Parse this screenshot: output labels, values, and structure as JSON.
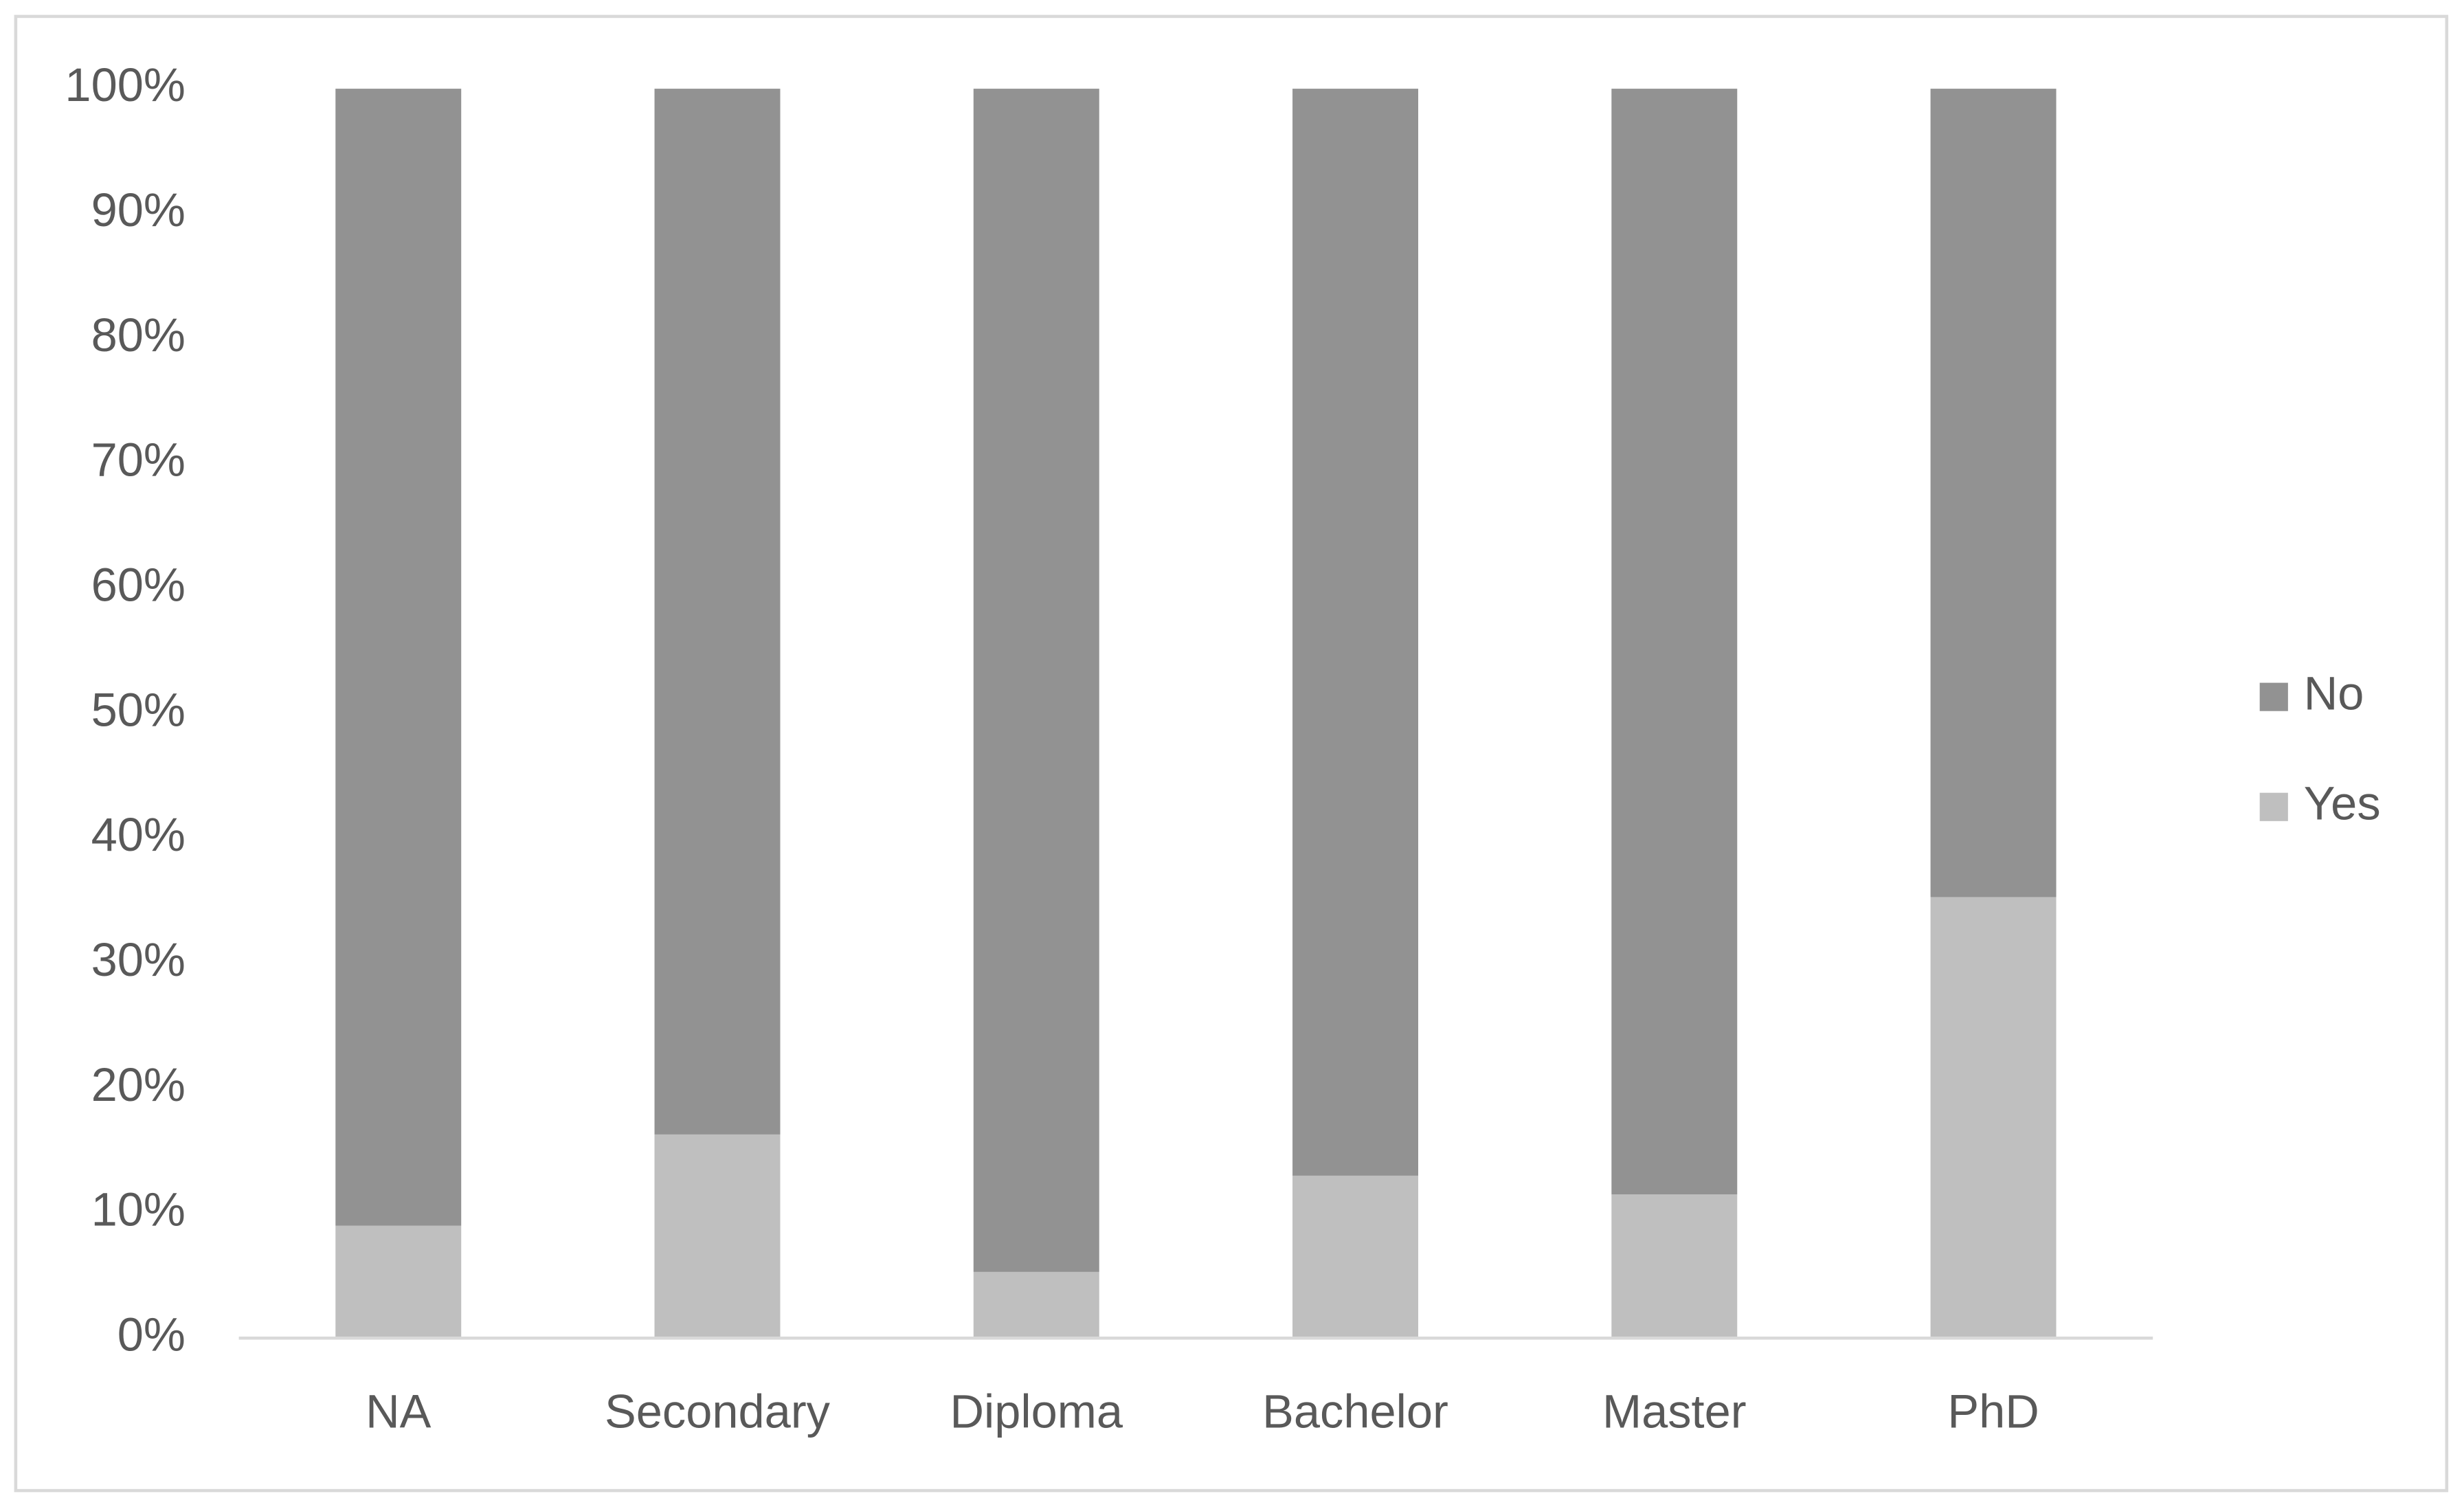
{
  "chart_data": {
    "type": "stacked-bar",
    "categories": [
      "NA",
      "Secondary",
      "Diploma",
      "Bachelor",
      "Master",
      "PhD"
    ],
    "series": [
      {
        "name": "Yes",
        "color": "#bfbfbf",
        "values": [
          9,
          16.3,
          5.3,
          13,
          11.5,
          35.3
        ]
      },
      {
        "name": "No",
        "color": "#929292",
        "values": [
          91,
          83.7,
          94.7,
          87,
          88.5,
          64.7
        ]
      }
    ],
    "ylim": [
      0,
      100
    ],
    "yticks": [
      {
        "value": 0,
        "label": "0%"
      },
      {
        "value": 10,
        "label": "10%"
      },
      {
        "value": 20,
        "label": "20%"
      },
      {
        "value": 30,
        "label": "30%"
      },
      {
        "value": 40,
        "label": "40%"
      },
      {
        "value": 50,
        "label": "50%"
      },
      {
        "value": 60,
        "label": "60%"
      },
      {
        "value": 70,
        "label": "70%"
      },
      {
        "value": 80,
        "label": "80%"
      },
      {
        "value": 90,
        "label": "90%"
      },
      {
        "value": 100,
        "label": "100%"
      }
    ],
    "grid": false,
    "legend": "right"
  }
}
